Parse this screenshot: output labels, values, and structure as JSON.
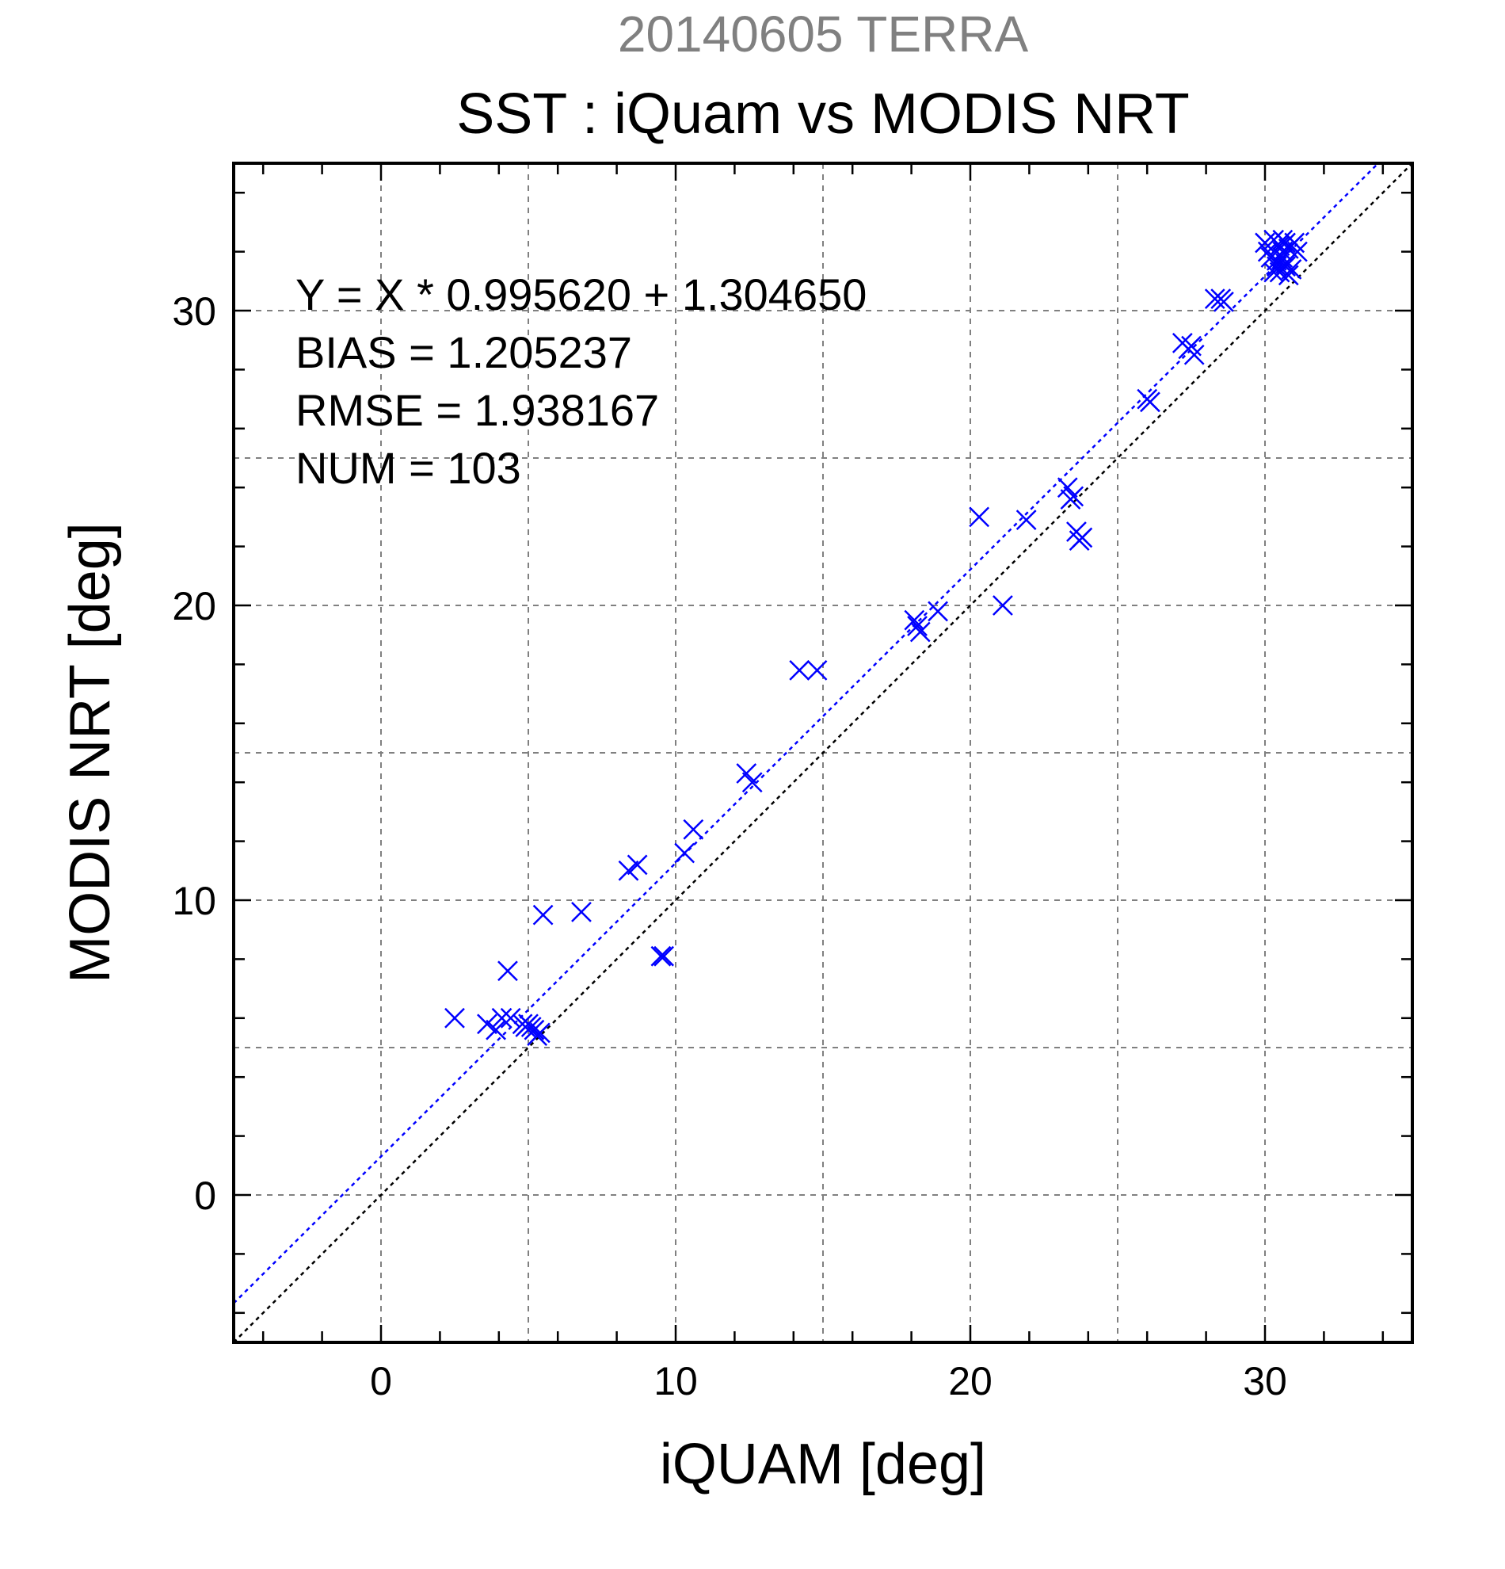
{
  "chart_data": {
    "type": "scatter",
    "supertitle": "20140605 TERRA",
    "title": "SST : iQuam vs MODIS NRT",
    "xlabel": "iQUAM [deg]",
    "ylabel": "MODIS NRT [deg]",
    "xlim": [
      -5,
      35
    ],
    "ylim": [
      -5,
      35
    ],
    "xticks": [
      0,
      10,
      20,
      30
    ],
    "yticks": [
      0,
      10,
      20,
      30
    ],
    "grid": true,
    "colors": {
      "points": "#0000ff",
      "fit_line": "#0000ff",
      "identity_line": "#000000",
      "grid": "#808080",
      "supertitle": "#808080"
    },
    "annotations": [
      "Y = X * 0.995620 + 1.304650",
      "BIAS = 1.205237",
      "RMSE = 1.938167",
      "NUM = 103"
    ],
    "fit_line": {
      "slope": 0.99562,
      "intercept": 1.30465
    },
    "identity_line": {
      "slope": 1,
      "intercept": 0
    },
    "marker": "x",
    "series": [
      {
        "x": [
          2.5,
          3.6,
          3.9,
          4.1,
          4.3,
          4.4,
          4.8,
          4.9,
          5.0,
          5.1,
          5.2,
          5.3,
          5.4,
          5.5,
          6.8,
          8.4,
          8.7,
          9.5,
          9.6,
          10.3,
          10.6,
          12.4,
          12.6,
          14.2,
          14.8,
          18.1,
          18.2,
          18.3,
          18.9,
          20.3,
          21.1,
          21.9,
          23.3,
          23.4,
          23.5,
          23.6,
          23.7,
          23.8,
          26.0,
          26.1,
          27.2,
          27.4,
          27.5,
          27.6,
          28.3,
          28.5,
          28.6,
          30.0,
          30.1,
          30.2,
          30.3,
          30.4,
          30.5,
          30.5,
          30.6,
          30.6,
          30.7,
          30.7,
          30.8,
          30.8,
          30.9,
          31.0,
          31.1,
          30.3,
          30.4,
          30.6,
          30.7
        ],
        "y": [
          6.0,
          5.8,
          5.6,
          6.0,
          7.6,
          6.0,
          5.8,
          5.7,
          5.8,
          5.7,
          5.6,
          5.4,
          5.5,
          9.5,
          9.6,
          11.0,
          11.2,
          8.1,
          8.1,
          11.6,
          12.4,
          14.3,
          14.0,
          17.8,
          17.8,
          19.5,
          19.3,
          19.1,
          19.8,
          23.0,
          20.0,
          22.9,
          24.0,
          23.6,
          23.7,
          22.5,
          22.2,
          22.3,
          27.0,
          26.9,
          28.9,
          28.7,
          28.8,
          28.5,
          30.4,
          30.4,
          30.3,
          32.3,
          32.0,
          31.8,
          32.4,
          31.5,
          32.2,
          31.3,
          31.8,
          32.0,
          32.3,
          31.6,
          31.2,
          32.1,
          31.4,
          32.3,
          32.0,
          31.3,
          31.7,
          32.4,
          31.5
        ]
      }
    ]
  }
}
